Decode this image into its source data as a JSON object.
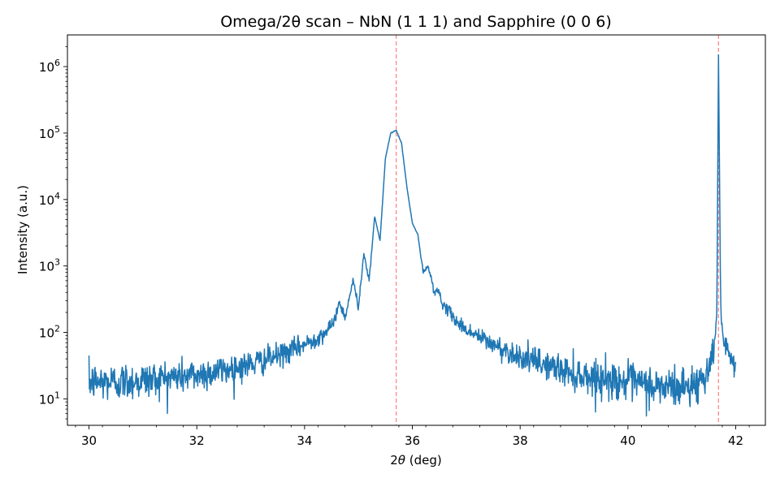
{
  "chart_data": {
    "type": "line",
    "title": "Omega/2θ scan – NbN (1 1 1) and Sapphire (0 0 6)",
    "xlabel_prefix": "2",
    "xlabel_symbol": "θ",
    "xlabel_suffix": " (deg)",
    "ylabel": "Intensity (a.u.)",
    "yscale": "log",
    "xlim": [
      29.6,
      42.55
    ],
    "ylim": [
      4,
      3000000
    ],
    "xticks": [
      30,
      32,
      34,
      36,
      38,
      40,
      42
    ],
    "yticks": [
      {
        "base": "10",
        "exp": "1",
        "value": 10
      },
      {
        "base": "10",
        "exp": "2",
        "value": 100
      },
      {
        "base": "10",
        "exp": "3",
        "value": 1000
      },
      {
        "base": "10",
        "exp": "4",
        "value": 10000
      },
      {
        "base": "10",
        "exp": "5",
        "value": 100000
      },
      {
        "base": "10",
        "exp": "6",
        "value": 1000000
      }
    ],
    "reference_lines": [
      {
        "label": "NbN (1 1 1)",
        "x": 35.7
      },
      {
        "label": "Sapphire (0 0 6)",
        "x": 41.68
      }
    ],
    "series": [
      {
        "name": "Omega/2θ scan",
        "x": [
          30.0,
          30.5,
          31.0,
          31.5,
          32.0,
          32.5,
          33.0,
          33.5,
          34.0,
          34.3,
          34.5,
          34.65,
          34.75,
          34.9,
          35.0,
          35.1,
          35.2,
          35.3,
          35.4,
          35.5,
          35.6,
          35.7,
          35.8,
          35.9,
          36.0,
          36.1,
          36.2,
          36.3,
          36.4,
          36.5,
          36.6,
          36.7,
          36.8,
          37.0,
          37.5,
          38.0,
          38.5,
          39.0,
          39.5,
          40.0,
          40.5,
          41.0,
          41.3,
          41.5,
          41.6,
          41.65,
          41.68,
          41.72,
          41.76,
          41.8,
          41.9,
          42.0
        ],
        "y": [
          18,
          18,
          19,
          21,
          23,
          27,
          33,
          44,
          65,
          90,
          120,
          280,
          170,
          600,
          250,
          1550,
          600,
          5600,
          2400,
          42000,
          100000,
          110000,
          70000,
          15000,
          4400,
          3000,
          800,
          1000,
          420,
          400,
          220,
          210,
          150,
          110,
          65,
          43,
          32,
          24,
          20,
          18,
          15,
          15,
          17,
          28,
          60,
          200,
          1500000,
          250,
          100,
          55,
          38,
          28
        ]
      }
    ]
  }
}
